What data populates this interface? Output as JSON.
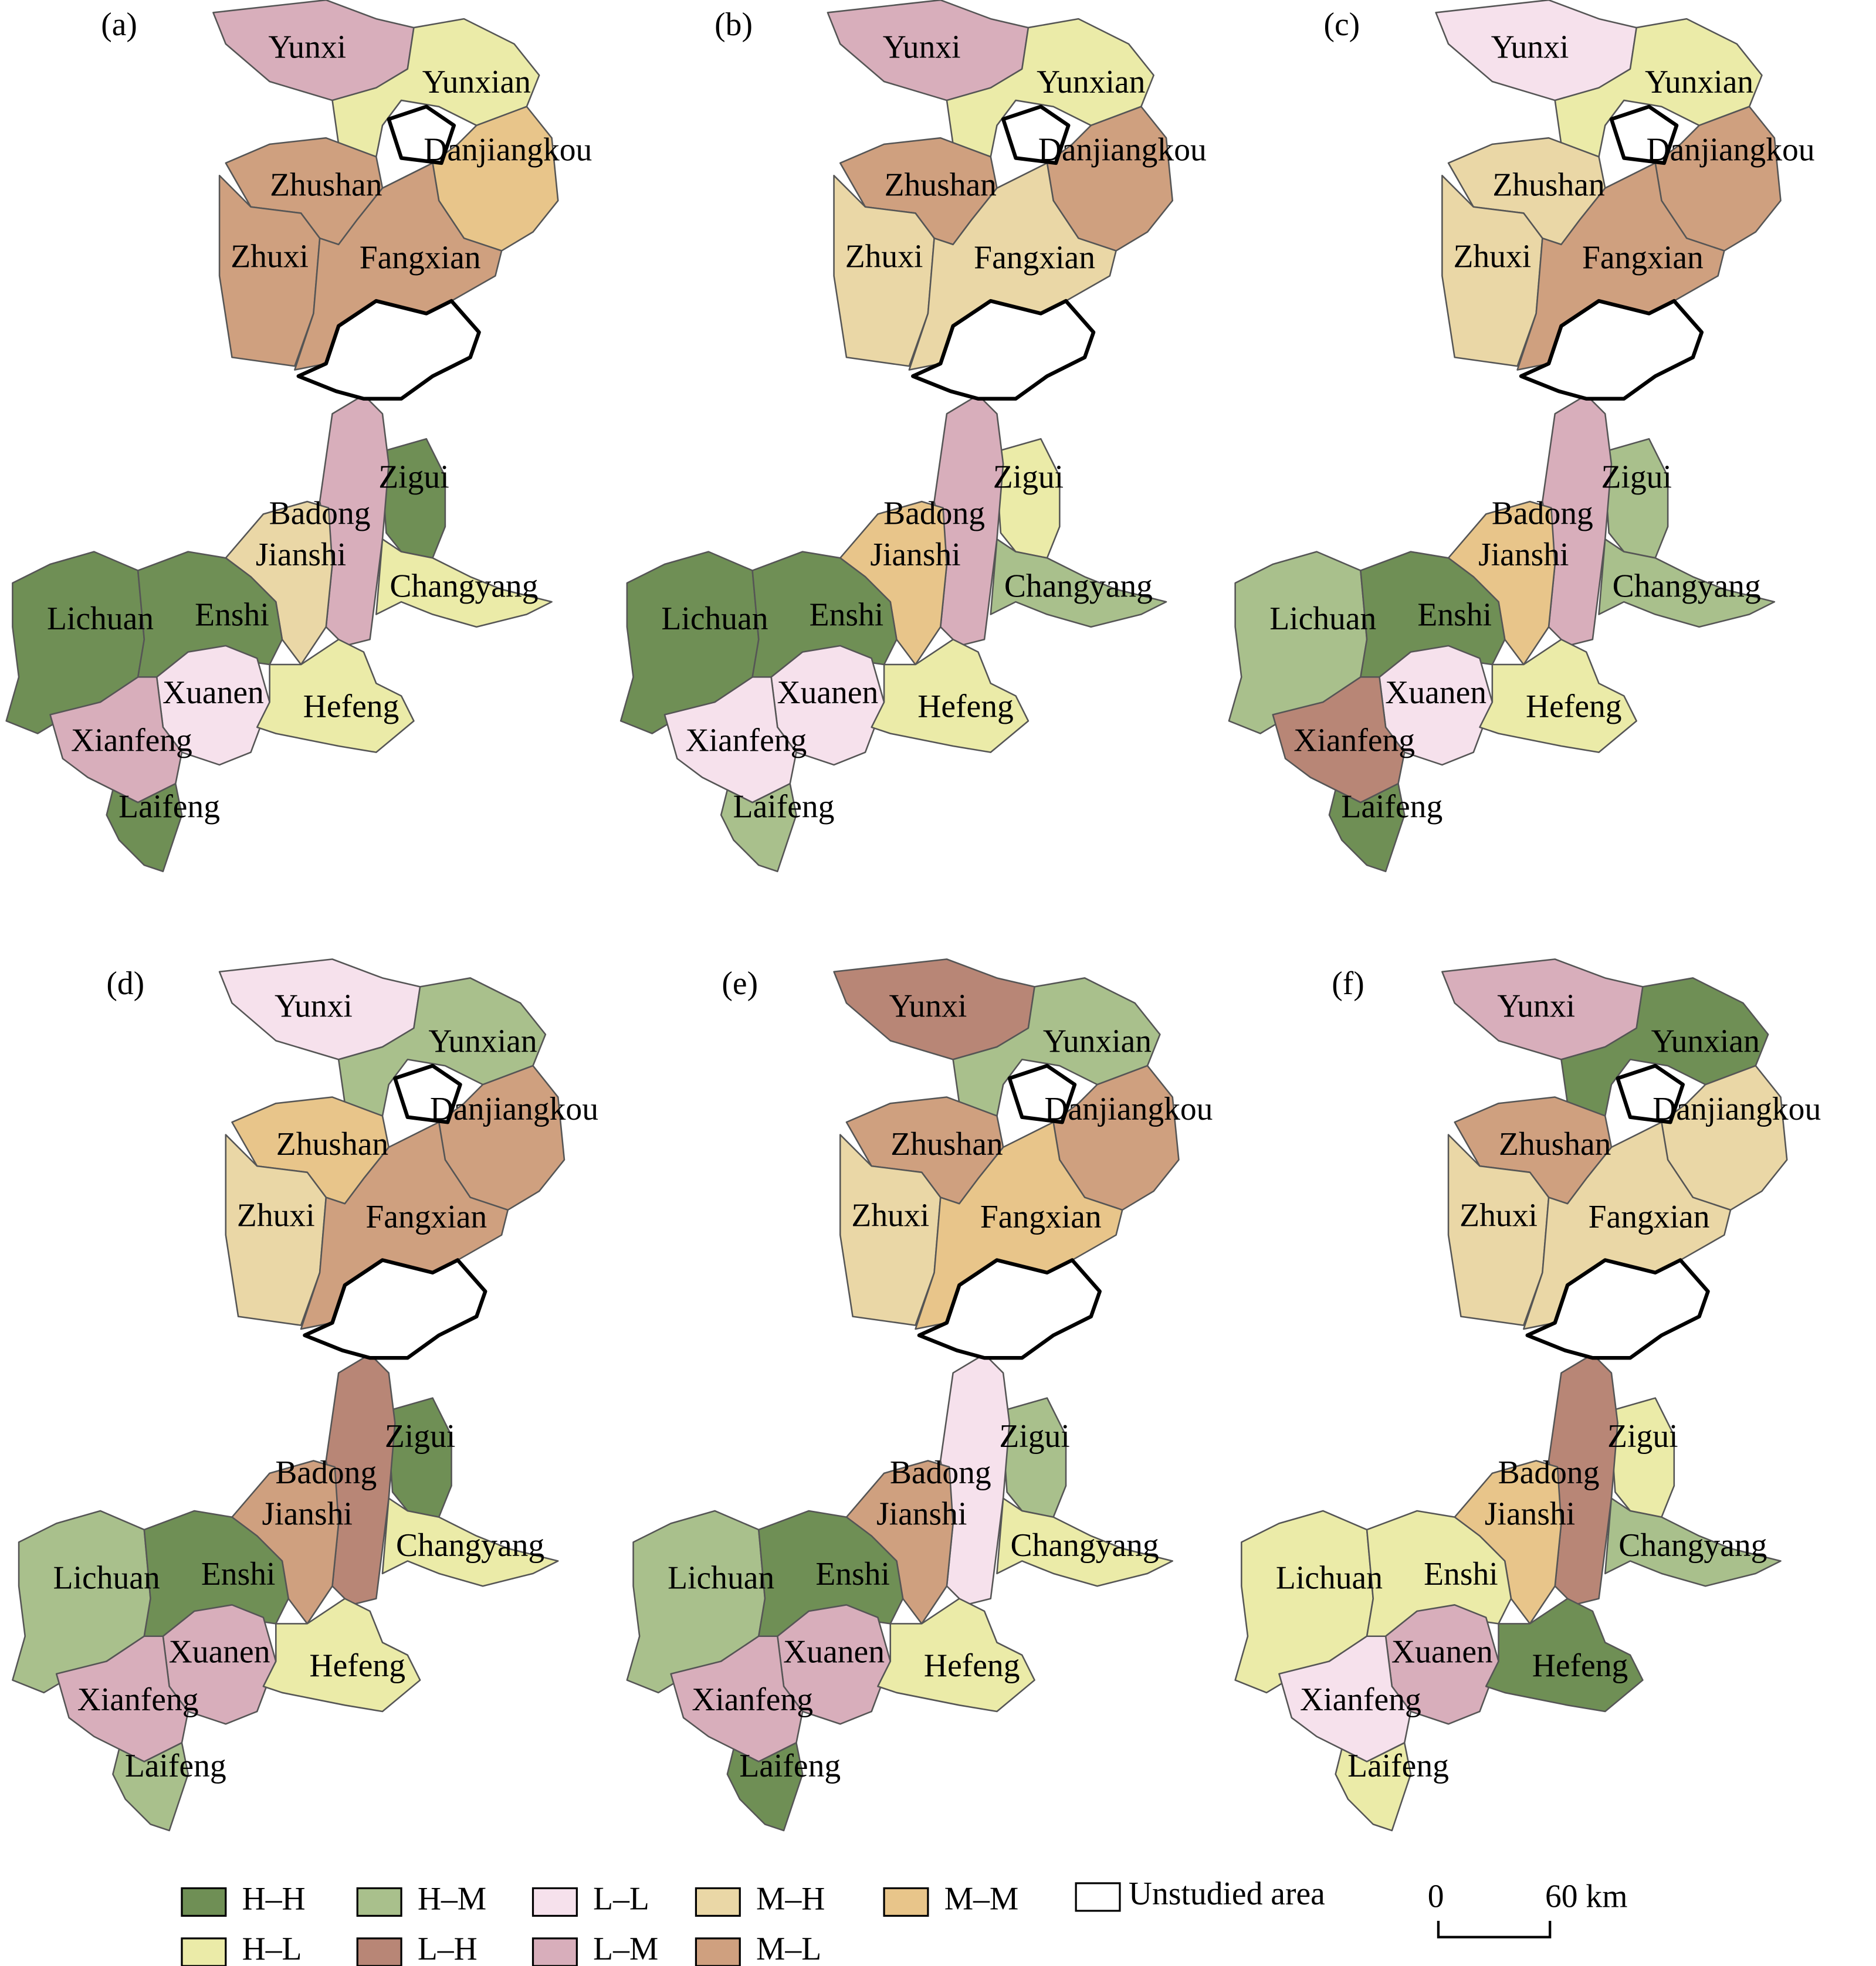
{
  "legend": {
    "items": [
      {
        "code": "H–H",
        "color": "#6f8f55"
      },
      {
        "code": "H–M",
        "color": "#a9c08c"
      },
      {
        "code": "L–L",
        "color": "#f6e1ec"
      },
      {
        "code": "M–H",
        "color": "#ead7a6"
      },
      {
        "code": "M–M",
        "color": "#e8c58a"
      },
      {
        "code": "H–L",
        "color": "#ebeba8"
      },
      {
        "code": "L–H",
        "color": "#b88676"
      },
      {
        "code": "L–M",
        "color": "#d8aebb"
      },
      {
        "code": "M–L",
        "color": "#cfa07f"
      }
    ],
    "unstudied": "Unstudied area"
  },
  "scale_bar": {
    "start": "0",
    "end": "60 km"
  },
  "regions": [
    {
      "name": "Yunxi"
    },
    {
      "name": "Yunxian"
    },
    {
      "name": "Danjiangkou"
    },
    {
      "name": "Zhushan"
    },
    {
      "name": "Zhuxi"
    },
    {
      "name": "Fangxian"
    },
    {
      "name": "Zigui"
    },
    {
      "name": "Badong"
    },
    {
      "name": "Jianshi"
    },
    {
      "name": "Changyang"
    },
    {
      "name": "Lichuan"
    },
    {
      "name": "Enshi"
    },
    {
      "name": "Xuanen"
    },
    {
      "name": "Hefeng"
    },
    {
      "name": "Xianfeng"
    },
    {
      "name": "Laifeng"
    }
  ],
  "panels": [
    {
      "label": "(a)",
      "classes": [
        "L–M",
        "H–L",
        "M–M",
        "M–L",
        "M–L",
        "M–L",
        "H–H",
        "L–M",
        "M–H",
        "H–L",
        "H–H",
        "H–H",
        "L–L",
        "H–L",
        "L–M",
        "H–H"
      ]
    },
    {
      "label": "(b)",
      "classes": [
        "L–M",
        "H–L",
        "M–L",
        "M–L",
        "M–H",
        "M–H",
        "H–L",
        "L–M",
        "M–M",
        "H–M",
        "H–H",
        "H–H",
        "L–L",
        "H–L",
        "L–L",
        "H–M"
      ]
    },
    {
      "label": "(c)",
      "classes": [
        "L–L",
        "H–L",
        "M–L",
        "M–H",
        "M–H",
        "M–L",
        "H–M",
        "L–M",
        "M–M",
        "H–M",
        "H–M",
        "H–H",
        "L–L",
        "H–L",
        "L–H",
        "H–H"
      ]
    },
    {
      "label": "(d)",
      "classes": [
        "L–L",
        "H–M",
        "M–L",
        "M–M",
        "M–H",
        "M–L",
        "H–H",
        "L–H",
        "M–L",
        "H–L",
        "H–M",
        "H–H",
        "L–M",
        "H–L",
        "L–M",
        "H–M"
      ]
    },
    {
      "label": "(e)",
      "classes": [
        "L–H",
        "H–M",
        "M–L",
        "M–L",
        "M–H",
        "M–M",
        "H–M",
        "L–L",
        "M–L",
        "H–L",
        "H–M",
        "H–H",
        "L–M",
        "H–L",
        "L–M",
        "H–H"
      ]
    },
    {
      "label": "(f)",
      "classes": [
        "L–M",
        "H–H",
        "M–H",
        "M–L",
        "M–H",
        "M–H",
        "H–L",
        "L–H",
        "M–M",
        "H–M",
        "H–L",
        "H–L",
        "L–M",
        "H–H",
        "L–L",
        "H–L"
      ]
    }
  ]
}
